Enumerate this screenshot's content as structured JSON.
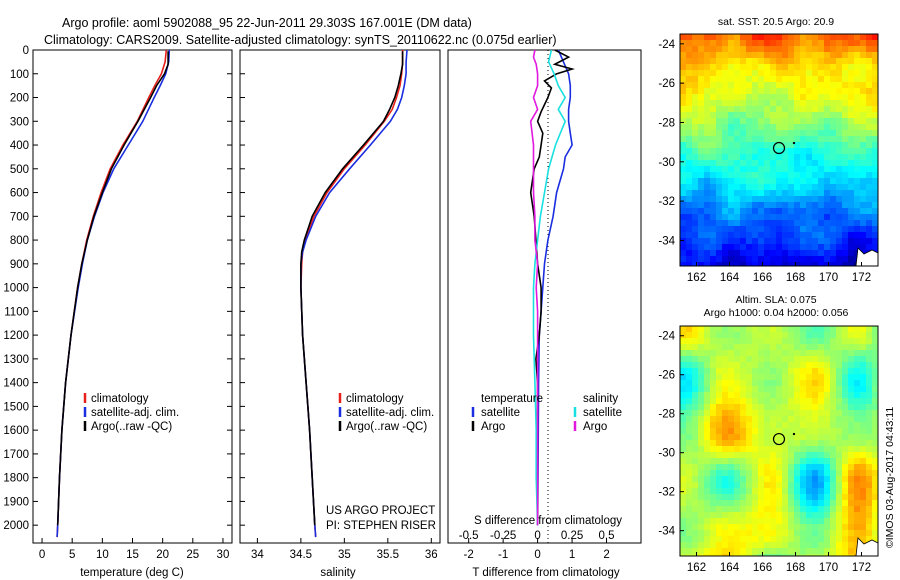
{
  "header": {
    "title_line1": "Argo profile: aoml 5902088_95 22-Jun-2011 29.303S 167.001E (DM data)",
    "title_line2": "Climatology: CARS2009. Satellite-adjusted climatology: synTS_20110622.nc (0.075d earlier)"
  },
  "colors": {
    "climatology": "#e8201c",
    "satellite": "#1a2ee0",
    "argo": "#000000",
    "cyan": "#18e0e0",
    "magenta": "#e018e0"
  },
  "chart_data": [
    {
      "type": "line",
      "id": "temperature",
      "xlabel": "temperature (deg C)",
      "ylabel": "",
      "xlim": [
        -1.5,
        31.5
      ],
      "ylim": [
        2075,
        0
      ],
      "xticks": [
        0,
        5,
        10,
        15,
        20,
        25,
        30
      ],
      "yticks": [
        0,
        100,
        200,
        300,
        400,
        500,
        600,
        700,
        800,
        900,
        1000,
        1100,
        1200,
        1300,
        1400,
        1500,
        1600,
        1700,
        1800,
        1900,
        2000
      ],
      "legend": [
        "climatology",
        "satellite-adj. clim.",
        "Argo(..raw -QC)"
      ],
      "series": [
        {
          "name": "climatology",
          "color": "#e8201c",
          "depth": [
            0,
            50,
            100,
            150,
            200,
            300,
            400,
            500,
            600,
            700,
            800,
            900,
            1000,
            1200,
            1400,
            1600,
            1800,
            2000,
            2050
          ],
          "values": [
            20.6,
            20.4,
            19.8,
            18.7,
            17.7,
            15.8,
            13.4,
            11.3,
            9.8,
            8.5,
            7.4,
            6.6,
            5.9,
            4.8,
            3.9,
            3.3,
            2.9,
            2.6,
            2.5
          ]
        },
        {
          "name": "satellite-adj. clim.",
          "color": "#1a2ee0",
          "depth": [
            0,
            50,
            100,
            150,
            200,
            300,
            400,
            500,
            600,
            700,
            800,
            900,
            1000,
            1200,
            1400,
            1600,
            1800,
            2000,
            2050
          ],
          "values": [
            21.1,
            21.0,
            20.5,
            19.6,
            18.6,
            16.7,
            14.3,
            11.9,
            10.1,
            8.7,
            7.5,
            6.7,
            6.0,
            4.8,
            3.9,
            3.3,
            2.9,
            2.6,
            2.5
          ]
        },
        {
          "name": "Argo(..raw -QC)",
          "color": "#000000",
          "depth": [
            5,
            30,
            60,
            100,
            150,
            200,
            300,
            400,
            500,
            600,
            700,
            800,
            900,
            1000,
            1200,
            1400,
            1600,
            1800,
            2000
          ],
          "values": [
            20.9,
            20.9,
            20.9,
            20.3,
            19.0,
            18.0,
            15.9,
            13.6,
            11.5,
            10.0,
            8.6,
            7.5,
            6.6,
            5.9,
            4.8,
            3.9,
            3.3,
            2.9,
            2.6
          ]
        }
      ]
    },
    {
      "type": "line",
      "id": "salinity",
      "xlabel": "salinity",
      "xlim": [
        33.8,
        36.1
      ],
      "ylim": [
        2075,
        0
      ],
      "xticks": [
        34,
        34.5,
        35,
        35.5,
        36
      ],
      "legend": [
        "climatology",
        "satellite-adj. clim.",
        "Argo(..raw -QC)"
      ],
      "annotation_line1": "US ARGO PROJECT",
      "annotation_line2": "PI: STEPHEN RISER",
      "series": [
        {
          "name": "climatology",
          "color": "#e8201c",
          "depth": [
            0,
            50,
            100,
            150,
            200,
            250,
            300,
            400,
            500,
            600,
            700,
            800,
            850,
            900,
            1000,
            1200,
            1400,
            1600,
            1800,
            2000,
            2050
          ],
          "values": [
            35.67,
            35.67,
            35.66,
            35.64,
            35.6,
            35.55,
            35.46,
            35.24,
            35.0,
            34.8,
            34.65,
            34.55,
            34.52,
            34.51,
            34.5,
            34.52,
            34.56,
            34.6,
            34.63,
            34.66,
            34.67
          ]
        },
        {
          "name": "satellite-adj. clim.",
          "color": "#1a2ee0",
          "depth": [
            0,
            50,
            100,
            150,
            200,
            250,
            300,
            400,
            500,
            600,
            700,
            800,
            850,
            900,
            1000,
            1200,
            1400,
            1600,
            1800,
            2000,
            2050
          ],
          "values": [
            35.72,
            35.71,
            35.71,
            35.69,
            35.66,
            35.61,
            35.53,
            35.3,
            35.06,
            34.83,
            34.67,
            34.56,
            34.52,
            34.5,
            34.5,
            34.52,
            34.56,
            34.6,
            34.63,
            34.66,
            34.67
          ]
        },
        {
          "name": "Argo(..raw -QC)",
          "color": "#000000",
          "depth": [
            5,
            30,
            60,
            100,
            150,
            200,
            250,
            300,
            400,
            500,
            600,
            700,
            800,
            850,
            900,
            1000,
            1200,
            1400,
            1600,
            1800,
            2000
          ],
          "values": [
            35.67,
            35.67,
            35.67,
            35.65,
            35.62,
            35.58,
            35.52,
            35.45,
            35.22,
            34.98,
            34.78,
            34.63,
            34.54,
            34.51,
            34.5,
            34.5,
            34.52,
            34.56,
            34.6,
            34.63,
            34.66
          ]
        }
      ]
    },
    {
      "type": "line",
      "id": "difference",
      "xlabel": "T difference from climatology",
      "xlabel2": "S difference from climatology",
      "xlim": [
        -2.6,
        3.0
      ],
      "ylim": [
        2075,
        0
      ],
      "xticks": [
        -2,
        -1,
        0,
        1,
        2
      ],
      "xticks2": [
        -0.5,
        -0.25,
        0,
        0.25,
        0.5
      ],
      "legend_temperature_title": "temperature",
      "legend_salinity_title": "salinity",
      "legend": [
        "satellite",
        "Argo",
        "satellite",
        "Argo"
      ],
      "series": [
        {
          "name": "temperature satellite",
          "color": "#1a2ee0",
          "depth": [
            0,
            50,
            100,
            150,
            200,
            250,
            300,
            350,
            400,
            450,
            500,
            600,
            700,
            800,
            900,
            1000,
            1100,
            1200,
            1400,
            1600,
            1800,
            2000
          ],
          "values": [
            0.6,
            0.75,
            0.9,
            0.95,
            0.95,
            0.9,
            0.9,
            0.95,
            1.0,
            0.8,
            0.75,
            0.55,
            0.45,
            0.3,
            0.2,
            0.15,
            0.1,
            0.05,
            0.03,
            0.02,
            0.01,
            0.0
          ]
        },
        {
          "name": "temperature Argo",
          "color": "#000000",
          "depth": [
            0,
            30,
            60,
            80,
            100,
            130,
            160,
            200,
            230,
            260,
            300,
            350,
            400,
            450,
            500,
            550,
            600,
            700,
            800,
            900,
            1000,
            1100,
            1200,
            1300,
            1400,
            1600,
            1800,
            2000
          ],
          "values": [
            0.5,
            0.9,
            0.5,
            1.0,
            0.55,
            0.2,
            0.4,
            0.3,
            0.2,
            0.1,
            0.0,
            0.15,
            0.1,
            0.05,
            -0.1,
            -0.15,
            -0.2,
            -0.1,
            -0.05,
            0.0,
            0.1,
            0.1,
            0.05,
            -0.05,
            0.0,
            0.0,
            0.0,
            0.0
          ]
        },
        {
          "name": "salinity satellite",
          "color": "#18e0e0",
          "depth": [
            0,
            50,
            100,
            150,
            200,
            250,
            300,
            400,
            500,
            600,
            700,
            800,
            900,
            1000,
            1200,
            1400,
            1600,
            1800,
            2000
          ],
          "values": [
            0.1,
            0.08,
            0.12,
            0.15,
            0.2,
            0.15,
            0.2,
            0.13,
            0.08,
            0.05,
            0.02,
            0.0,
            -0.02,
            -0.03,
            -0.03,
            -0.02,
            -0.01,
            -0.01,
            0.0
          ]
        },
        {
          "name": "salinity Argo",
          "color": "#e018e0",
          "depth": [
            0,
            30,
            60,
            100,
            150,
            200,
            250,
            300,
            400,
            500,
            600,
            700,
            800,
            900,
            1000,
            1100,
            1200,
            1400,
            1600,
            1800,
            2000
          ],
          "values": [
            -0.02,
            -0.03,
            -0.01,
            0.0,
            0.0,
            -0.03,
            0.0,
            -0.05,
            -0.03,
            -0.03,
            -0.03,
            -0.02,
            -0.02,
            0.0,
            -0.01,
            0.0,
            0.0,
            0.0,
            0.0,
            0.0,
            0.0
          ]
        }
      ]
    },
    {
      "type": "heatmap",
      "id": "sst_map",
      "title": "sat. SST: 20.5  Argo: 20.9",
      "xlim": [
        161,
        173
      ],
      "ylim": [
        -35.3,
        -23.5
      ],
      "xticks": [
        162,
        164,
        166,
        168,
        170,
        172
      ],
      "yticks": [
        -24,
        -26,
        -28,
        -30,
        -32,
        -34
      ],
      "marker": {
        "lon": 167.0,
        "lat": -29.3
      }
    },
    {
      "type": "heatmap",
      "id": "sla_map",
      "title_line1": "Altim. SLA: 0.075",
      "title_line2": "Argo h1000: 0.04 h2000: 0.056",
      "xlim": [
        161,
        173
      ],
      "ylim": [
        -35.3,
        -23.5
      ],
      "xticks": [
        162,
        164,
        166,
        168,
        170,
        172
      ],
      "yticks": [
        -24,
        -26,
        -28,
        -30,
        -32,
        -34
      ],
      "marker": {
        "lon": 167.0,
        "lat": -29.3
      }
    }
  ],
  "footer": {
    "credit": "©IMOS 03-Aug-2017 04:43:11"
  }
}
